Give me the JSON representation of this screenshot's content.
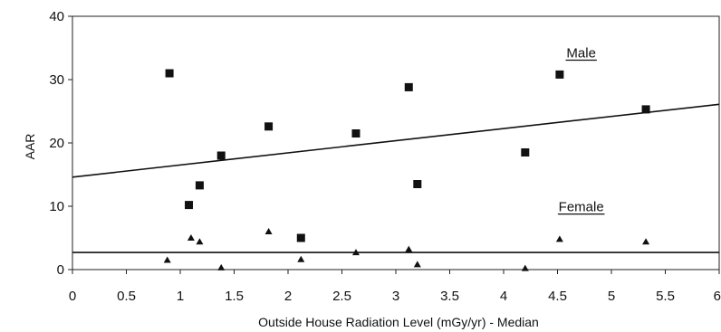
{
  "chart_data": {
    "type": "scatter",
    "title": "",
    "xlabel": "Outside House Radiation Level (mGy/yr) - Median",
    "ylabel": "AAR",
    "xlim": [
      0,
      6
    ],
    "ylim": [
      0,
      40
    ],
    "x_ticks": [
      "0",
      "0.5",
      "1",
      "1.5",
      "2",
      "2.5",
      "3",
      "3.5",
      "4",
      "4.5",
      "5",
      "5.5",
      "6"
    ],
    "y_ticks": [
      "0",
      "10",
      "20",
      "30",
      "40"
    ],
    "grid": false,
    "series": [
      {
        "name": "Male",
        "marker": "square",
        "color": "#111111",
        "points": [
          [
            0.9,
            31
          ],
          [
            1.08,
            10.2
          ],
          [
            1.18,
            13.3
          ],
          [
            1.38,
            18
          ],
          [
            1.82,
            22.6
          ],
          [
            2.12,
            5
          ],
          [
            2.63,
            21.5
          ],
          [
            3.12,
            28.8
          ],
          [
            3.2,
            13.5
          ],
          [
            4.2,
            18.5
          ],
          [
            4.52,
            30.8
          ],
          [
            5.32,
            25.3
          ]
        ],
        "trendline": {
          "from": [
            0,
            14.6
          ],
          "to": [
            6,
            26.1
          ]
        }
      },
      {
        "name": "Female",
        "marker": "triangle",
        "color": "#111111",
        "points": [
          [
            0.88,
            1.5
          ],
          [
            1.1,
            5
          ],
          [
            1.18,
            4.4
          ],
          [
            1.38,
            0.3
          ],
          [
            1.82,
            6
          ],
          [
            2.12,
            1.6
          ],
          [
            2.63,
            2.7
          ],
          [
            3.12,
            3.2
          ],
          [
            3.2,
            0.8
          ],
          [
            4.2,
            0.2
          ],
          [
            4.52,
            4.8
          ],
          [
            5.32,
            4.4
          ]
        ],
        "trendline": {
          "from": [
            0,
            2.7
          ],
          "to": [
            6,
            2.7
          ]
        }
      }
    ]
  }
}
